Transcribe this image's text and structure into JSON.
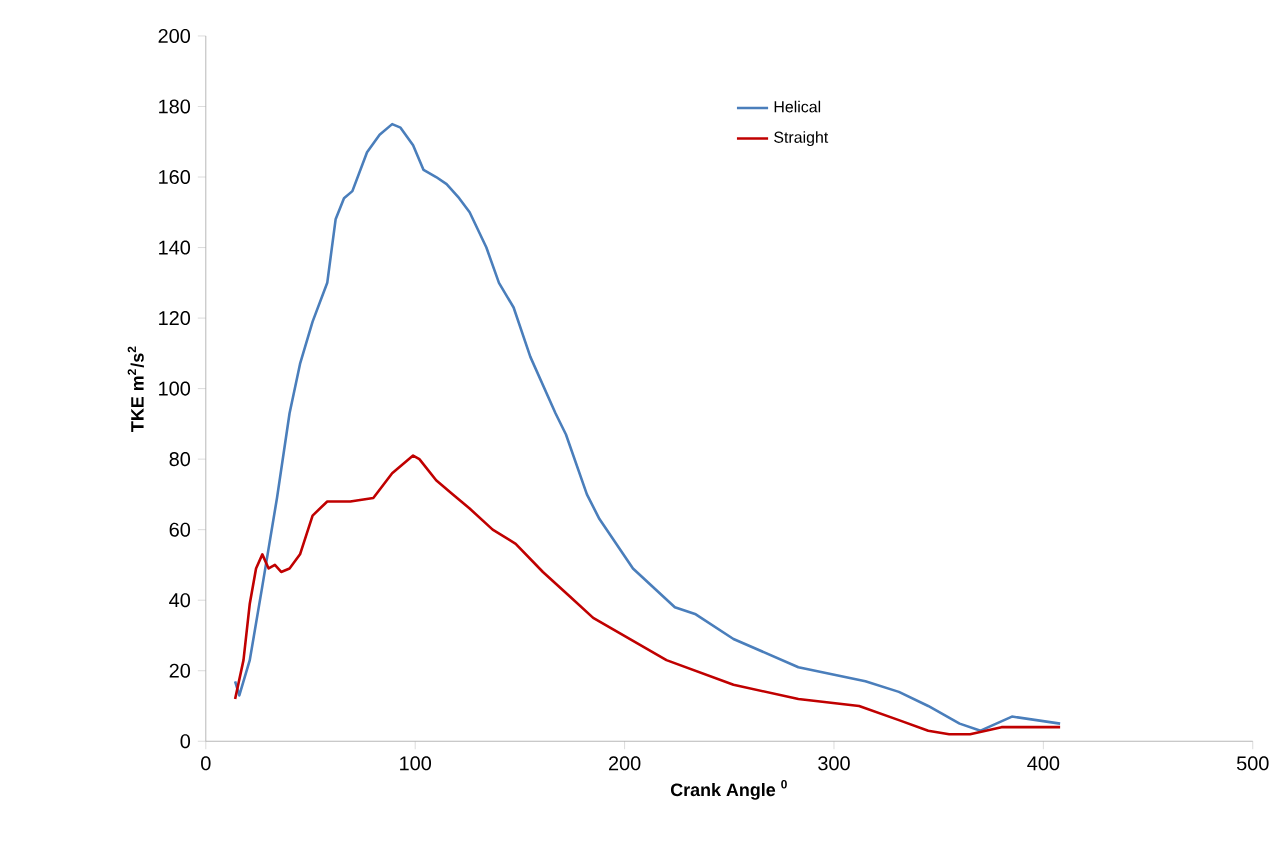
{
  "chart_data": {
    "type": "line",
    "xlabel": "Crank Angle $^{0}$",
    "ylabel": "TKE m$^{2}$/s$^{2}$",
    "xlim": [
      0,
      500
    ],
    "ylim": [
      0,
      200
    ],
    "xticks": [
      0,
      100,
      200,
      300,
      400,
      500
    ],
    "yticks": [
      0,
      20,
      40,
      60,
      80,
      100,
      120,
      140,
      160,
      180,
      200
    ],
    "grid": false,
    "legend": "top",
    "marker": "none",
    "line_style": "solid",
    "series": [
      {
        "name": "Helical",
        "color": "#4a7ebb",
        "x": [
          14,
          16,
          21,
          27,
          34,
          40,
          45,
          51,
          58,
          62,
          66,
          70,
          77,
          83,
          89,
          93,
          99,
          104,
          110,
          115,
          121,
          126,
          134,
          140,
          147,
          155,
          167,
          172,
          182,
          188,
          204,
          224,
          234,
          252,
          283,
          315,
          331,
          345,
          360,
          370,
          385,
          408
        ],
        "values": [
          17,
          13,
          23,
          44,
          69,
          93,
          107,
          119,
          130,
          148,
          154,
          156,
          167,
          172,
          175,
          174,
          169,
          162,
          160,
          158,
          154,
          150,
          140,
          130,
          123,
          109,
          93,
          87,
          70,
          63,
          49,
          38,
          36,
          29,
          21,
          17,
          14,
          10,
          5,
          3,
          7,
          5
        ]
      },
      {
        "name": "Straight",
        "color": "#c00000",
        "x": [
          14,
          18,
          21,
          24,
          27,
          30,
          33,
          36,
          40,
          45,
          51,
          58,
          69,
          80,
          89,
          99,
          102,
          110,
          118,
          126,
          137,
          148,
          161,
          174,
          185,
          220,
          252,
          283,
          312,
          331,
          345,
          355,
          365,
          380,
          408
        ],
        "values": [
          12,
          23,
          39,
          49,
          53,
          49,
          50,
          48,
          49,
          53,
          64,
          68,
          68,
          69,
          76,
          81,
          80,
          74,
          70,
          66,
          60,
          56,
          48,
          41,
          35,
          23,
          16,
          12,
          10,
          6,
          3,
          2,
          2,
          4,
          4
        ]
      }
    ]
  }
}
